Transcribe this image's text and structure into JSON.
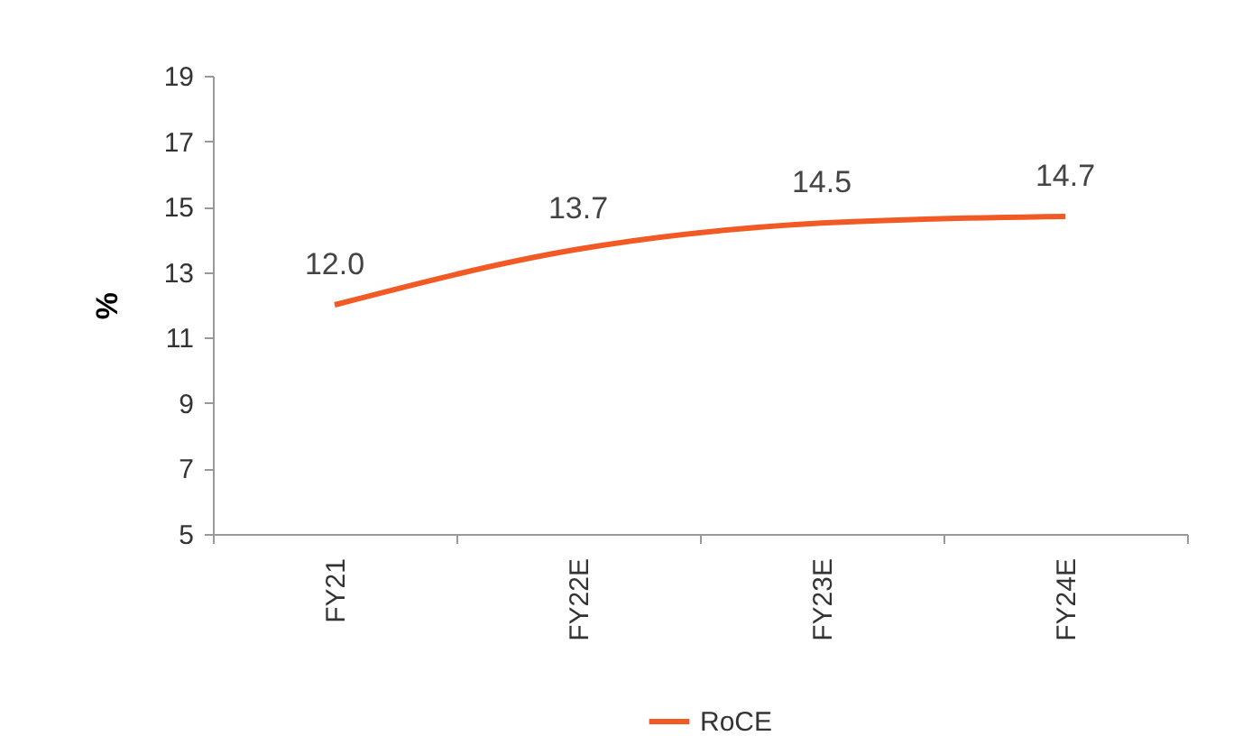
{
  "chart_data": {
    "type": "line",
    "ylabel": "%",
    "categories": [
      "FY21",
      "FY22E",
      "FY23E",
      "FY24E"
    ],
    "series": [
      {
        "name": "RoCE",
        "color": "#f15a24",
        "values": [
          12.0,
          13.7,
          14.5,
          14.7
        ],
        "value_labels": [
          "12.0",
          "13.7",
          "14.5",
          "14.7"
        ]
      }
    ],
    "ylim": [
      5,
      19
    ],
    "yticks": [
      5,
      7,
      9,
      11,
      13,
      15,
      17,
      19
    ],
    "grid": false,
    "legend": "bottom",
    "marker": "none",
    "line_style": "solid"
  }
}
